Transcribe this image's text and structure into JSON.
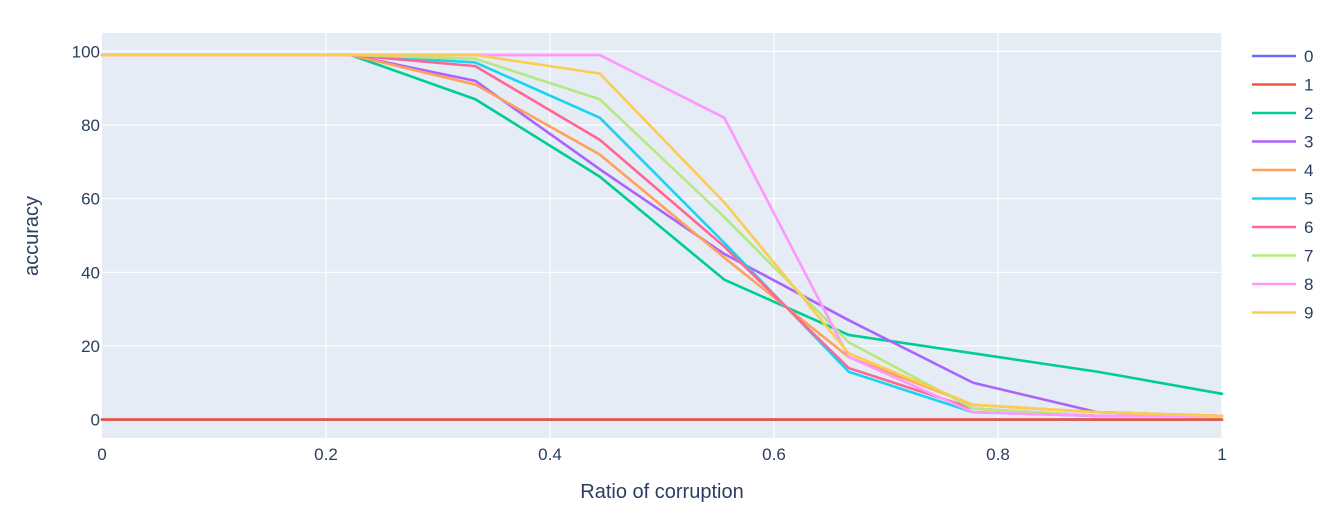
{
  "chart_data": {
    "type": "line",
    "xlabel": "Ratio of corruption",
    "ylabel": "accuracy",
    "xlim": [
      0,
      1
    ],
    "ylim": [
      -5,
      105
    ],
    "x_ticks": [
      0,
      0.2,
      0.4,
      0.6,
      0.8,
      1
    ],
    "x_tick_labels": [
      "0",
      "0.2",
      "0.4",
      "0.6",
      "0.8",
      "1"
    ],
    "y_ticks": [
      0,
      20,
      40,
      60,
      80,
      100
    ],
    "y_tick_labels": [
      "0",
      "20",
      "40",
      "60",
      "80",
      "100"
    ],
    "grid": true,
    "legend_position": "right",
    "plot_background": "#e5ecf6",
    "x": [
      0,
      0.1111,
      0.2222,
      0.3333,
      0.4444,
      0.5556,
      0.6667,
      0.7778,
      0.8889,
      1
    ],
    "series": [
      {
        "name": "0",
        "color": "#636efa",
        "values": [
          0,
          0,
          0,
          0,
          0,
          0,
          0,
          0,
          0,
          0
        ]
      },
      {
        "name": "1",
        "color": "#ef553b",
        "values": [
          0,
          0,
          0,
          0,
          0,
          0,
          0,
          0,
          0,
          0
        ]
      },
      {
        "name": "2",
        "color": "#00cc96",
        "values": [
          99,
          99,
          99,
          87,
          66,
          38,
          23,
          18,
          13,
          7
        ]
      },
      {
        "name": "3",
        "color": "#ab63fa",
        "values": [
          99,
          99,
          99,
          92,
          68,
          45,
          27,
          10,
          2,
          1
        ]
      },
      {
        "name": "4",
        "color": "#ffa15a",
        "values": [
          99,
          99,
          99,
          91,
          72,
          44,
          17,
          4,
          2,
          1
        ]
      },
      {
        "name": "5",
        "color": "#19d3f3",
        "values": [
          99,
          99,
          99,
          97,
          82,
          48,
          13,
          2,
          1,
          1
        ]
      },
      {
        "name": "6",
        "color": "#ff6692",
        "values": [
          99,
          99,
          99,
          96,
          76,
          47,
          14,
          3,
          1,
          1
        ]
      },
      {
        "name": "7",
        "color": "#b6e880",
        "values": [
          99,
          99,
          99,
          98,
          87,
          55,
          21,
          3,
          1,
          1
        ]
      },
      {
        "name": "8",
        "color": "#ff97ff",
        "values": [
          99,
          99,
          99,
          99,
          99,
          82,
          17,
          2,
          1,
          1
        ]
      },
      {
        "name": "9",
        "color": "#fecb52",
        "values": [
          99,
          99,
          99,
          99,
          94,
          59,
          18,
          4,
          2,
          1
        ]
      }
    ]
  }
}
